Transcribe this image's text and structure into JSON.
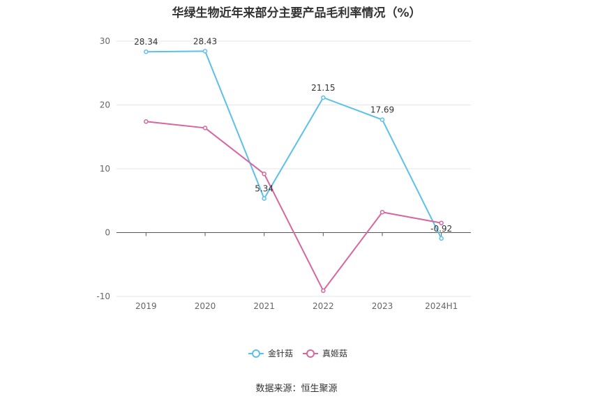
{
  "title": "华绿生物近年来部分主要产品毛利率情况（%）",
  "source": "数据来源：恒生聚源",
  "chart_data": {
    "type": "line",
    "title": "华绿生物近年来部分主要产品毛利率情况（%）",
    "categories": [
      "2019",
      "2020",
      "2021",
      "2022",
      "2023",
      "2024H1"
    ],
    "ylim": [
      -10,
      30
    ],
    "yticks": [
      -10,
      0,
      10,
      20,
      30
    ],
    "grid": true,
    "legend_position": "bottom",
    "series": [
      {
        "name": "金针菇",
        "color": "#5bc0eb",
        "values": [
          28.34,
          28.43,
          5.34,
          21.15,
          17.69,
          -0.92
        ],
        "labels": [
          "28.34",
          "28.43",
          "5.34",
          "21.15",
          "17.69",
          "-0.92"
        ]
      },
      {
        "name": "真姬菇",
        "color": "#d9659f",
        "values": [
          17.4,
          16.4,
          9.2,
          -9.1,
          3.2,
          1.5
        ]
      }
    ]
  }
}
